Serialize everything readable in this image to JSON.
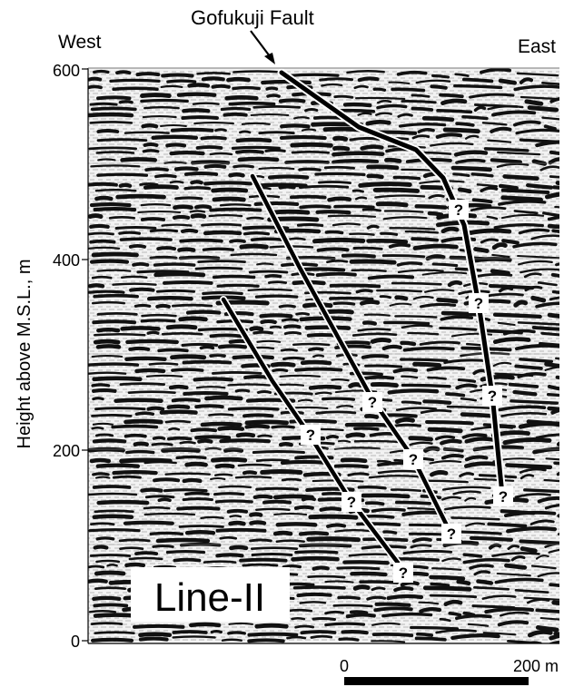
{
  "figure": {
    "fault_label": "Gofukuji Fault",
    "west_label": "West",
    "east_label": "East",
    "y_axis_label": "Height above M.S.L., m",
    "y_ticks": [
      "600",
      "400",
      "200",
      "0"
    ],
    "line_label": "Line-II",
    "scale_bar": {
      "start_label": "0",
      "end_label": "200 m"
    },
    "uncertain_marker": "?"
  },
  "colors": {
    "background": "#ffffff",
    "reflector": "#111111",
    "fault_line": "#000000",
    "fault_casing": "#ffffff"
  }
}
